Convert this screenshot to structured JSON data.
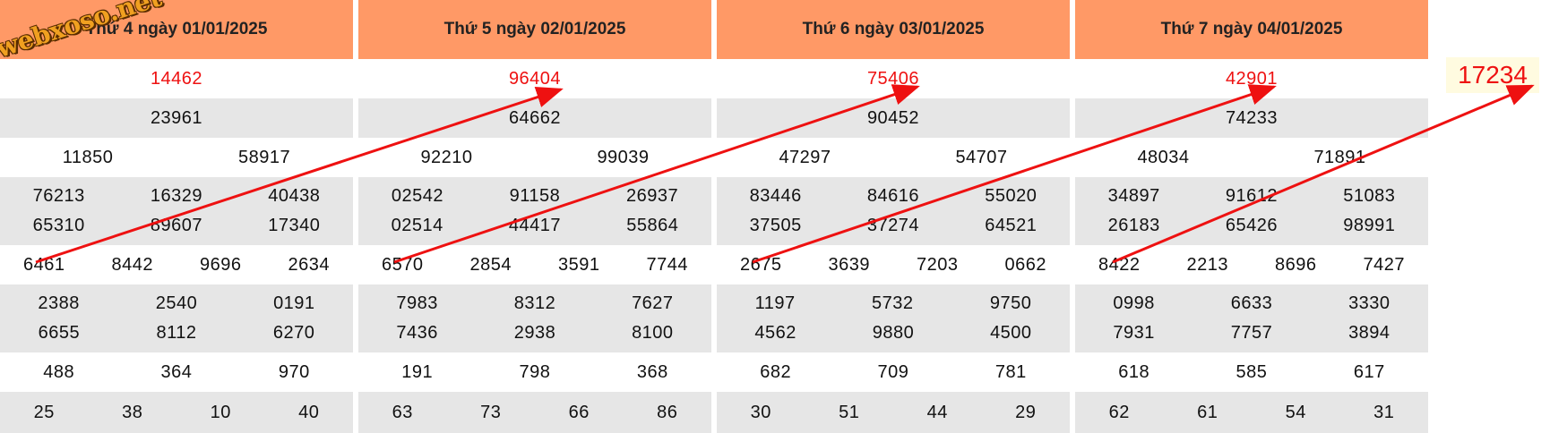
{
  "watermark": "webxoso.net",
  "prediction": "17234",
  "colors": {
    "header_bg": "#ff9966",
    "special_text": "#ee1111",
    "arrow": "#ee1111",
    "stripe": "#e6e6e6"
  },
  "days": [
    {
      "title": "Thứ 4 ngày 01/01/2025",
      "special": "14462",
      "first": "23961",
      "second": [
        "11850",
        "58917"
      ],
      "third": [
        "76213",
        "16329",
        "40438",
        "65310",
        "89607",
        "17340"
      ],
      "fourth": [
        "6461",
        "8442",
        "9696",
        "2634"
      ],
      "fifth": [
        "2388",
        "2540",
        "0191",
        "6655",
        "8112",
        "6270"
      ],
      "sixth": [
        "488",
        "364",
        "970"
      ],
      "seventh": [
        "25",
        "38",
        "10",
        "40"
      ]
    },
    {
      "title": "Thứ 5 ngày 02/01/2025",
      "special": "96404",
      "first": "64662",
      "second": [
        "92210",
        "99039"
      ],
      "third": [
        "02542",
        "91158",
        "26937",
        "02514",
        "44417",
        "55864"
      ],
      "fourth": [
        "6570",
        "2854",
        "3591",
        "7744"
      ],
      "fifth": [
        "7983",
        "8312",
        "7627",
        "7436",
        "2938",
        "8100"
      ],
      "sixth": [
        "191",
        "798",
        "368"
      ],
      "seventh": [
        "63",
        "73",
        "66",
        "86"
      ]
    },
    {
      "title": "Thứ 6 ngày 03/01/2025",
      "special": "75406",
      "first": "90452",
      "second": [
        "47297",
        "54707"
      ],
      "third": [
        "83446",
        "84616",
        "55020",
        "37505",
        "37274",
        "64521"
      ],
      "fourth": [
        "2675",
        "3639",
        "7203",
        "0662"
      ],
      "fifth": [
        "1197",
        "5732",
        "9750",
        "4562",
        "9880",
        "4500"
      ],
      "sixth": [
        "682",
        "709",
        "781"
      ],
      "seventh": [
        "30",
        "51",
        "44",
        "29"
      ]
    },
    {
      "title": "Thứ 7 ngày 04/01/2025",
      "special": "42901",
      "first": "74233",
      "second": [
        "48034",
        "71891"
      ],
      "third": [
        "34897",
        "91612",
        "51083",
        "26183",
        "65426",
        "98991"
      ],
      "fourth": [
        "8422",
        "2213",
        "8696",
        "7427"
      ],
      "fifth": [
        "0998",
        "6633",
        "3330",
        "7931",
        "7757",
        "3894"
      ],
      "sixth": [
        "618",
        "585",
        "617"
      ],
      "seventh": [
        "62",
        "61",
        "54",
        "31"
      ]
    }
  ]
}
